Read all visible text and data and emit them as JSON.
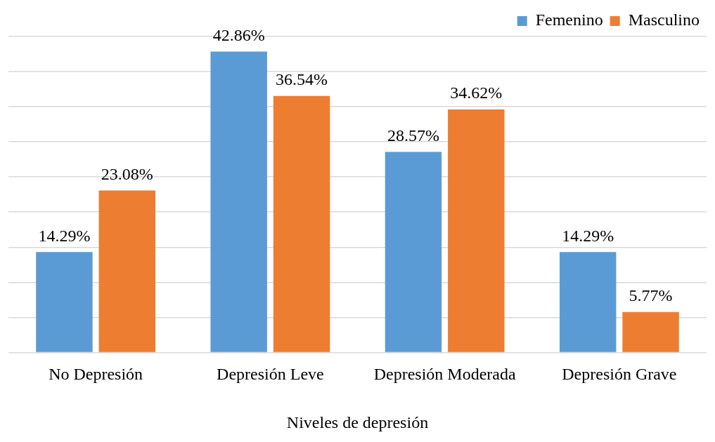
{
  "chart_data": {
    "type": "bar",
    "xlabel": "Niveles de depresión",
    "categories": [
      "No Depresión",
      "Depresión Leve",
      "Depresión Moderada",
      "Depresión Grave"
    ],
    "series": [
      {
        "name": "Femenino",
        "color": "#5b9bd5",
        "values": [
          14.29,
          42.86,
          28.57,
          14.29
        ],
        "value_labels": [
          "14.29%",
          "42.86%",
          "28.57%",
          "14.29%"
        ]
      },
      {
        "name": "Masculino",
        "color": "#ed7d31",
        "values": [
          23.08,
          36.54,
          34.62,
          5.77
        ],
        "value_labels": [
          "23.08%",
          "36.54%",
          "34.62%",
          "5.77%"
        ]
      }
    ],
    "grid": "y",
    "tick_labels": "x",
    "legend": "top right"
  }
}
